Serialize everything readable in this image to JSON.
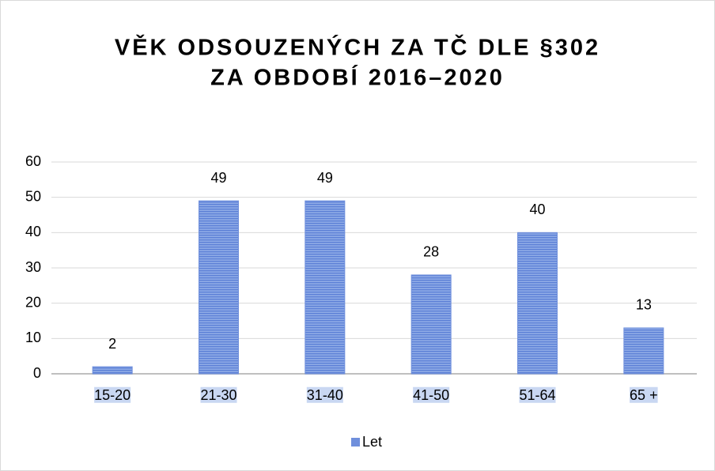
{
  "chart_data": {
    "type": "bar",
    "title": [
      "VĚK ODSOUZENÝCH ZA TČ DLE §302",
      "ZA OBDOBÍ 2016–2020"
    ],
    "categories": [
      "15-20",
      "21-30",
      "31-40",
      "41-50",
      "51-64",
      "65 +"
    ],
    "series": [
      {
        "name": "Let",
        "color": "#6f8fdc",
        "values": [
          2,
          49,
          49,
          28,
          40,
          13
        ]
      }
    ],
    "ylim": [
      0,
      60
    ],
    "yticks": [
      0,
      10,
      20,
      30,
      40,
      50,
      60
    ],
    "grid": true,
    "legend": "bottom"
  }
}
